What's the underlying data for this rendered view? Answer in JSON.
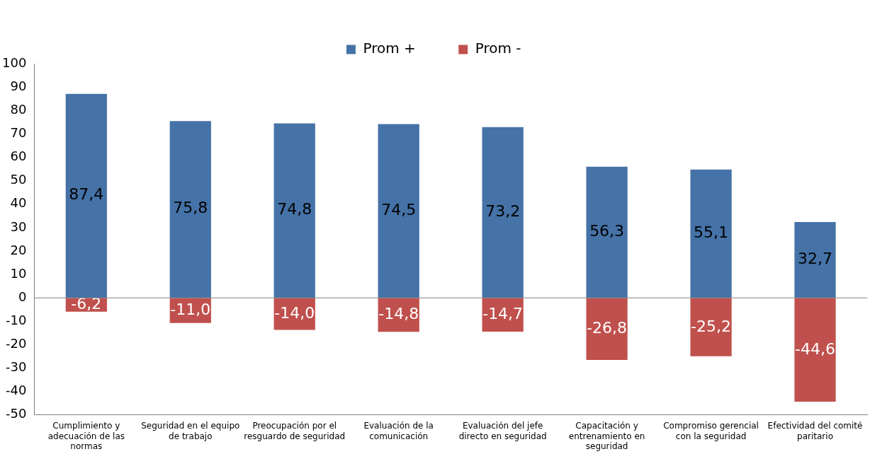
{
  "chart_data": {
    "type": "bar",
    "stacked": true,
    "categories": [
      "Cumplimiento y adecuación de las normas",
      "Seguridad en el equipo de trabajo",
      "Preocupación por el resguardo de seguridad",
      "Evaluación de la comunicación",
      "Evaluación del jefe directo en seguridad",
      "Capacitación y entrenamiento en seguridad",
      "Compromiso gerencial con la seguridad",
      "Efectividad del comité paritario"
    ],
    "series": [
      {
        "name": "Prom +",
        "color": "#4572a7",
        "values": [
          87.4,
          75.8,
          74.8,
          74.5,
          73.2,
          56.3,
          55.1,
          32.7
        ],
        "value_labels": [
          "87,4",
          "75,8",
          "74,8",
          "74,5",
          "73,2",
          "56,3",
          "55,1",
          "32,7"
        ]
      },
      {
        "name": "Prom -",
        "color": "#c0504d",
        "values": [
          -6.2,
          -11.0,
          -14.0,
          -14.8,
          -14.7,
          -26.8,
          -25.2,
          -44.6
        ],
        "value_labels": [
          "-6,2",
          "-11,0",
          "-14,0",
          "-14,8",
          "-14,7",
          "-26,8",
          "-25,2",
          "-44,6"
        ]
      }
    ],
    "ylim": [
      -50,
      100
    ],
    "yticks": [
      -50,
      -40,
      -30,
      -20,
      -10,
      0,
      10,
      20,
      30,
      40,
      50,
      60,
      70,
      80,
      90,
      100
    ],
    "grid": false,
    "legend": "top",
    "ref_lines": [
      {
        "axis": "y",
        "value": 0,
        "color": "#808080"
      }
    ]
  }
}
